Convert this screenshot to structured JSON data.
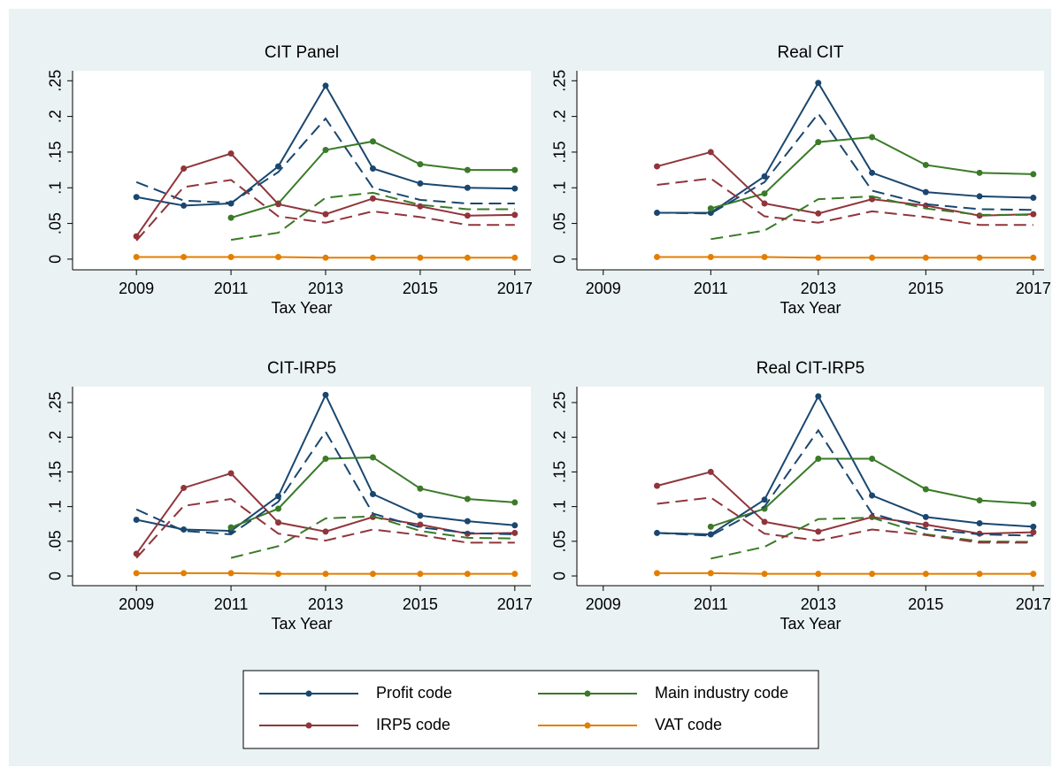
{
  "chart_data": [
    {
      "type": "line",
      "title": "CIT Panel",
      "x_label": "Tax Year",
      "legend": "bottom",
      "x": [
        2009,
        2010,
        2011,
        2012,
        2013,
        2014,
        2015,
        2016,
        2017
      ],
      "xlim": [
        2007.65,
        2017.34
      ],
      "xticks": [
        2009,
        2011,
        2013,
        2015,
        2017
      ],
      "ylim": [
        -0.015,
        0.264
      ],
      "yticks": [
        0,
        {
          "value": 0.05,
          "label": ".05"
        },
        {
          "value": 0.1,
          "label": ".1"
        },
        {
          "value": 0.15,
          "label": ".15"
        },
        {
          "value": 0.2,
          "label": ".2"
        },
        {
          "value": 0.25,
          "label": ".25"
        }
      ],
      "series": [
        {
          "name": "Profit code",
          "color": "#1a476f",
          "values": [
            0.087,
            0.075,
            0.078,
            0.13,
            0.243,
            0.127,
            0.106,
            0.1,
            0.099
          ]
        },
        {
          "name": "Main industry code",
          "color": "#3a7a28",
          "values": [
            null,
            null,
            0.058,
            0.078,
            0.153,
            0.165,
            0.133,
            0.125,
            0.125
          ]
        },
        {
          "name": "IRP5 code",
          "color": "#90353b",
          "values": [
            0.032,
            0.127,
            0.148,
            0.077,
            0.063,
            0.085,
            0.074,
            0.061,
            0.062
          ]
        },
        {
          "name": "VAT code",
          "color": "#e37e00",
          "values": [
            0.003,
            0.003,
            0.003,
            0.003,
            0.002,
            0.002,
            0.002,
            0.002,
            0.002
          ]
        },
        {
          "color": "#1a476f",
          "dash": true,
          "values": [
            0.108,
            0.082,
            0.079,
            0.122,
            0.197,
            0.1,
            0.083,
            0.078,
            0.078
          ]
        },
        {
          "color": "#3a7a28",
          "dash": true,
          "values": [
            null,
            null,
            0.027,
            0.037,
            0.086,
            0.093,
            0.076,
            0.07,
            0.07
          ]
        },
        {
          "color": "#90353b",
          "dash": true,
          "values": [
            0.026,
            0.101,
            0.111,
            0.06,
            0.051,
            0.067,
            0.059,
            0.048,
            0.048
          ]
        }
      ]
    },
    {
      "type": "line",
      "title": "Real CIT",
      "x_label": "Tax Year",
      "x": [
        2009,
        2010,
        2011,
        2012,
        2013,
        2014,
        2015,
        2016,
        2017
      ],
      "xlim": [
        2008.51,
        2017.2
      ],
      "xticks": [
        2009,
        2011,
        2013,
        2015,
        2017
      ],
      "ylim": [
        -0.015,
        0.264
      ],
      "yticks": [
        0,
        {
          "value": 0.05,
          "label": ".05"
        },
        {
          "value": 0.1,
          "label": ".1"
        },
        {
          "value": 0.15,
          "label": ".15"
        },
        {
          "value": 0.2,
          "label": ".2"
        },
        {
          "value": 0.25,
          "label": ".25"
        }
      ],
      "series": [
        {
          "color": "#1a476f",
          "values": [
            null,
            0.065,
            0.065,
            0.116,
            0.247,
            0.121,
            0.094,
            0.088,
            0.086
          ]
        },
        {
          "color": "#3a7a28",
          "values": [
            null,
            null,
            0.071,
            0.092,
            0.164,
            0.171,
            0.132,
            0.121,
            0.119
          ]
        },
        {
          "color": "#90353b",
          "values": [
            null,
            0.13,
            0.15,
            0.078,
            0.064,
            0.084,
            0.075,
            0.061,
            0.063
          ]
        },
        {
          "color": "#e37e00",
          "values": [
            null,
            0.003,
            0.003,
            0.003,
            0.002,
            0.002,
            0.002,
            0.002,
            0.002
          ]
        },
        {
          "color": "#1a476f",
          "dash": true,
          "values": [
            null,
            0.065,
            0.064,
            0.108,
            0.204,
            0.096,
            0.077,
            0.07,
            0.069
          ]
        },
        {
          "color": "#3a7a28",
          "dash": true,
          "values": [
            null,
            null,
            0.028,
            0.04,
            0.084,
            0.088,
            0.071,
            0.062,
            0.062
          ]
        },
        {
          "color": "#90353b",
          "dash": true,
          "values": [
            null,
            0.104,
            0.113,
            0.06,
            0.051,
            0.067,
            0.059,
            0.048,
            0.048
          ]
        }
      ]
    },
    {
      "type": "line",
      "title": "CIT-IRP5",
      "x_label": "Tax Year",
      "x": [
        2009,
        2010,
        2011,
        2012,
        2013,
        2014,
        2015,
        2016,
        2017
      ],
      "xlim": [
        2007.65,
        2017.34
      ],
      "xticks": [
        2009,
        2011,
        2013,
        2015,
        2017
      ],
      "ylim": [
        -0.014,
        0.273
      ],
      "yticks": [
        0,
        {
          "value": 0.05,
          "label": ".05"
        },
        {
          "value": 0.1,
          "label": ".1"
        },
        {
          "value": 0.15,
          "label": ".15"
        },
        {
          "value": 0.2,
          "label": ".2"
        },
        {
          "value": 0.25,
          "label": ".25"
        }
      ],
      "series": [
        {
          "color": "#1a476f",
          "values": [
            0.081,
            0.067,
            0.065,
            0.115,
            0.261,
            0.118,
            0.087,
            0.079,
            0.073
          ]
        },
        {
          "color": "#3a7a28",
          "values": [
            null,
            null,
            0.07,
            0.097,
            0.169,
            0.171,
            0.126,
            0.111,
            0.106
          ]
        },
        {
          "color": "#90353b",
          "values": [
            0.032,
            0.127,
            0.148,
            0.077,
            0.064,
            0.085,
            0.074,
            0.061,
            0.062
          ]
        },
        {
          "color": "#e37e00",
          "values": [
            0.004,
            0.004,
            0.004,
            0.003,
            0.003,
            0.003,
            0.003,
            0.003,
            0.003
          ]
        },
        {
          "color": "#1a476f",
          "dash": true,
          "values": [
            0.096,
            0.065,
            0.06,
            0.107,
            0.208,
            0.09,
            0.07,
            0.062,
            0.06
          ]
        },
        {
          "color": "#3a7a28",
          "dash": true,
          "values": [
            null,
            null,
            0.026,
            0.043,
            0.083,
            0.086,
            0.065,
            0.055,
            0.054
          ]
        },
        {
          "color": "#90353b",
          "dash": true,
          "values": [
            0.026,
            0.101,
            0.111,
            0.061,
            0.051,
            0.067,
            0.059,
            0.048,
            0.048
          ]
        }
      ]
    },
    {
      "type": "line",
      "title": "Real CIT-IRP5",
      "x_label": "Tax Year",
      "x": [
        2009,
        2010,
        2011,
        2012,
        2013,
        2014,
        2015,
        2016,
        2017
      ],
      "xlim": [
        2008.51,
        2017.2
      ],
      "xticks": [
        2009,
        2011,
        2013,
        2015,
        2017
      ],
      "ylim": [
        -0.014,
        0.273
      ],
      "yticks": [
        0,
        {
          "value": 0.05,
          "label": ".05"
        },
        {
          "value": 0.1,
          "label": ".1"
        },
        {
          "value": 0.15,
          "label": ".15"
        },
        {
          "value": 0.2,
          "label": ".2"
        },
        {
          "value": 0.25,
          "label": ".25"
        }
      ],
      "series": [
        {
          "color": "#1a476f",
          "values": [
            null,
            0.062,
            0.06,
            0.11,
            0.259,
            0.116,
            0.085,
            0.076,
            0.071
          ]
        },
        {
          "color": "#3a7a28",
          "values": [
            null,
            null,
            0.071,
            0.097,
            0.169,
            0.169,
            0.125,
            0.109,
            0.104
          ]
        },
        {
          "color": "#90353b",
          "values": [
            null,
            0.13,
            0.15,
            0.078,
            0.064,
            0.085,
            0.074,
            0.061,
            0.063
          ]
        },
        {
          "color": "#e37e00",
          "values": [
            null,
            0.004,
            0.004,
            0.003,
            0.003,
            0.003,
            0.003,
            0.003,
            0.003
          ]
        },
        {
          "color": "#1a476f",
          "dash": true,
          "values": [
            null,
            0.062,
            0.058,
            0.1,
            0.21,
            0.09,
            0.068,
            0.06,
            0.058
          ]
        },
        {
          "color": "#3a7a28",
          "dash": true,
          "values": [
            null,
            null,
            0.025,
            0.042,
            0.082,
            0.084,
            0.06,
            0.05,
            0.049
          ]
        },
        {
          "color": "#90353b",
          "dash": true,
          "values": [
            null,
            0.104,
            0.113,
            0.061,
            0.051,
            0.067,
            0.059,
            0.048,
            0.048
          ]
        }
      ]
    }
  ]
}
